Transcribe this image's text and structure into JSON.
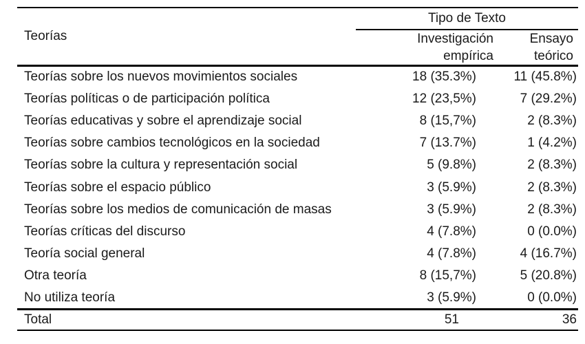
{
  "page": {
    "background_color": "#ffffff",
    "text_color": "#1a1a1a",
    "rule_color": "#000000"
  },
  "table": {
    "first_column_header": "Teorías",
    "group_header": "Tipo de Texto",
    "sub_headers": {
      "empirica": "Investigación empírica",
      "ensayo": "Ensayo teórico"
    },
    "rows": [
      {
        "teoria": "Teorías sobre los nuevos movimientos sociales",
        "investigacion_empirica": "18 (35.3%)",
        "ensayo_teorico": "11 (45.8%)"
      },
      {
        "teoria": "Teorías políticas o de participación política",
        "investigacion_empirica": "12 (23,5%)",
        "ensayo_teorico": "7 (29.2%)"
      },
      {
        "teoria": "Teorías educativas y sobre el aprendizaje social",
        "investigacion_empirica": "8 (15,7%)",
        "ensayo_teorico": "2 (8.3%)"
      },
      {
        "teoria": "Teorías sobre cambios tecnológicos en la sociedad",
        "investigacion_empirica": "7 (13.7%)",
        "ensayo_teorico": "1 (4.2%)"
      },
      {
        "teoria": "Teorías sobre la cultura y representación social",
        "investigacion_empirica": "5 (9.8%)",
        "ensayo_teorico": "2 (8.3%)"
      },
      {
        "teoria": "Teorías sobre el espacio público",
        "investigacion_empirica": "3 (5.9%)",
        "ensayo_teorico": "2 (8.3%)"
      },
      {
        "teoria": "Teorías sobre los medios de comunicación de masas",
        "investigacion_empirica": "3 (5.9%)",
        "ensayo_teorico": "2 (8.3%)"
      },
      {
        "teoria": "Teorías críticas del discurso",
        "investigacion_empirica": "4 (7.8%)",
        "ensayo_teorico": "0 (0.0%)"
      },
      {
        "teoria": "Teoría social general",
        "investigacion_empirica": "4 (7.8%)",
        "ensayo_teorico": "4 (16.7%)"
      },
      {
        "teoria": "Otra teoría",
        "investigacion_empirica": "8 (15,7%)",
        "ensayo_teorico": "5 (20.8%)"
      },
      {
        "teoria": "No utiliza teoría",
        "investigacion_empirica": "3 (5.9%)",
        "ensayo_teorico": "0 (0.0%)"
      }
    ],
    "total": {
      "label": "Total",
      "investigacion_empirica": "51",
      "ensayo_teorico": "36"
    }
  }
}
